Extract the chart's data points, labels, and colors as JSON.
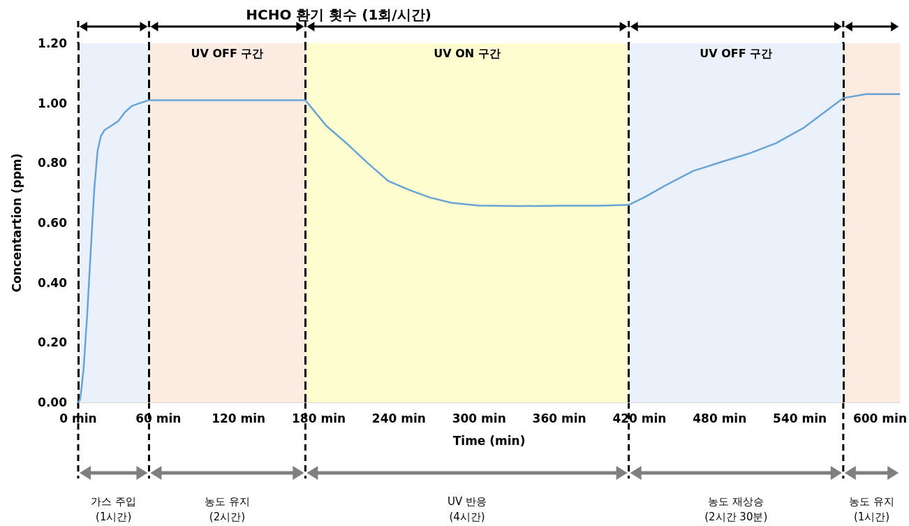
{
  "chart_data": {
    "type": "line",
    "title": "HCHO 환기 횟수 (1회/시간)",
    "xlabel": "Time (min)",
    "ylabel": "Concentartion (ppm)",
    "x": [
      0,
      1.5,
      4,
      6.7,
      9.3,
      12,
      14.5,
      17,
      19.7,
      25,
      30,
      35,
      40,
      46,
      53,
      70,
      90,
      110,
      130,
      150,
      170,
      185.5,
      201,
      216.6,
      232,
      247.7,
      263,
      279,
      299.5,
      330,
      360,
      390,
      412,
      424,
      439,
      460,
      481,
      501.6,
      522,
      543,
      558.5,
      572.5,
      589.6,
      615
    ],
    "series": [
      {
        "color": "#6aa3d6",
        "values": [
          0,
          0.01,
          0.11,
          0.29,
          0.5,
          0.71,
          0.84,
          0.89,
          0.91,
          0.925,
          0.94,
          0.97,
          0.99,
          1.0,
          1.01,
          1.01,
          1.01,
          1.01,
          1.01,
          1.01,
          1.01,
          0.925,
          0.865,
          0.8,
          0.74,
          0.71,
          0.685,
          0.667,
          0.658,
          0.656,
          0.657,
          0.657,
          0.66,
          0.686,
          0.724,
          0.773,
          0.803,
          0.831,
          0.866,
          0.918,
          0.97,
          1.017,
          1.03,
          1.03
        ]
      }
    ],
    "xlim": [
      0,
      615
    ],
    "xticks": [
      {
        "value": 0,
        "label": "0 min"
      },
      {
        "value": 60,
        "label": "60 min"
      },
      {
        "value": 120,
        "label": "120 min"
      },
      {
        "value": 180,
        "label": "180 min"
      },
      {
        "value": 240,
        "label": "240 min"
      },
      {
        "value": 300,
        "label": "300 min"
      },
      {
        "value": 360,
        "label": "360 min"
      },
      {
        "value": 420,
        "label": "420 min"
      },
      {
        "value": 480,
        "label": "480 min"
      },
      {
        "value": 540,
        "label": "540 min"
      },
      {
        "value": 600,
        "label": "600 min"
      }
    ],
    "ylim": [
      0,
      1.2
    ],
    "yticks": [
      {
        "value": 0,
        "label": "0.00"
      },
      {
        "value": 0.2,
        "label": "0.20"
      },
      {
        "value": 0.4,
        "label": "0.40"
      },
      {
        "value": 0.6,
        "label": "0.60"
      },
      {
        "value": 0.8,
        "label": "0.80"
      },
      {
        "value": 1.0,
        "label": "1.00"
      },
      {
        "value": 1.2,
        "label": "1.20"
      }
    ],
    "grid": "y",
    "marker": "none",
    "line_style": "solid",
    "bands": [
      {
        "axis": "x",
        "from": 0,
        "to": 53,
        "color": "#eaf1fa"
      },
      {
        "axis": "x",
        "from": 53,
        "to": 170,
        "label": "UV OFF 구간",
        "color": "#fbebe0"
      },
      {
        "axis": "x",
        "from": 170,
        "to": 412,
        "label": "UV ON 구간",
        "color": "#fefdd0"
      },
      {
        "axis": "x",
        "from": 412,
        "to": 572.5,
        "label": "UV OFF 구간",
        "color": "#eaf1fa"
      },
      {
        "axis": "x",
        "from": 572.5,
        "to": 615,
        "color": "#fbebe0"
      }
    ],
    "ref_lines": [
      {
        "axis": "x",
        "value": 0,
        "color": "#000000",
        "line_style": "dashed"
      },
      {
        "axis": "x",
        "value": 53,
        "color": "#000000",
        "line_style": "dashed"
      },
      {
        "axis": "x",
        "value": 170,
        "color": "#000000",
        "line_style": "dashed"
      },
      {
        "axis": "x",
        "value": 412,
        "color": "#000000",
        "line_style": "dashed"
      },
      {
        "axis": "x",
        "value": 572.5,
        "color": "#000000",
        "line_style": "dashed"
      }
    ],
    "annotations": [
      "가스 주입\n(1시간)",
      "농도 유지\n(2시간)",
      "UV 반응\n(4시간)",
      "농도 재상승\n(2시간 30분)",
      "농도 유지\n(1시간)"
    ]
  }
}
